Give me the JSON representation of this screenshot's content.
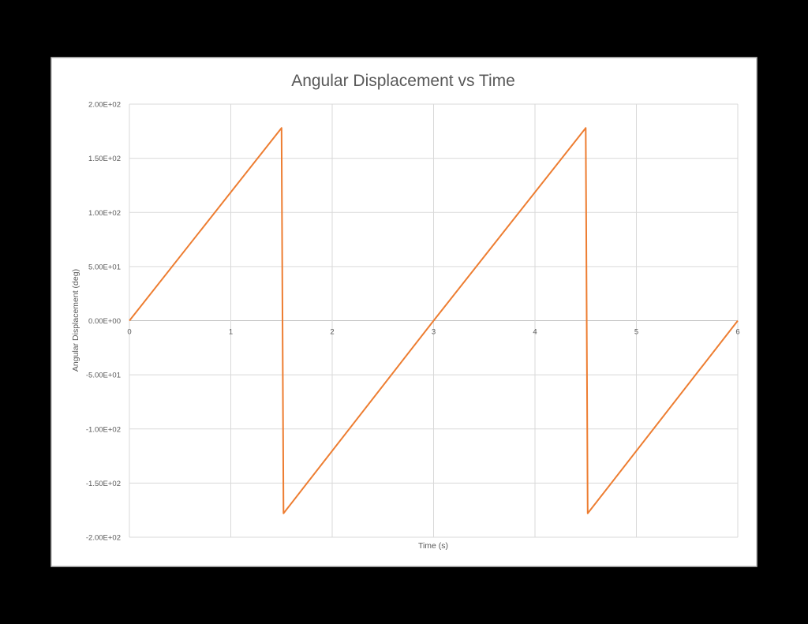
{
  "chart_data": {
    "type": "line",
    "title": "Angular Displacement vs Time",
    "xlabel": "Time (s)",
    "ylabel": "Angular Displacement (deg)",
    "xlim": [
      0,
      6
    ],
    "ylim": [
      -200,
      200
    ],
    "x_ticks": [
      "0",
      "1",
      "2",
      "3",
      "4",
      "5",
      "6"
    ],
    "y_ticks": [
      {
        "value": 200,
        "label": "2.00E+02"
      },
      {
        "value": 150,
        "label": "1.50E+02"
      },
      {
        "value": 100,
        "label": "1.00E+02"
      },
      {
        "value": 50,
        "label": "5.00E+01"
      },
      {
        "value": 0,
        "label": "0.00E+00"
      },
      {
        "value": -50,
        "label": "-5.00E+01"
      },
      {
        "value": -100,
        "label": "-1.00E+02"
      },
      {
        "value": -150,
        "label": "-1.50E+02"
      },
      {
        "value": -200,
        "label": "-2.00E+02"
      }
    ],
    "grid": true,
    "legend": "none",
    "color": "#ED7D31",
    "series": [
      {
        "x": [
          0,
          1.5,
          1.52,
          3.0,
          4.5,
          4.52,
          6.0
        ],
        "y": [
          0,
          178,
          -178,
          0,
          178,
          -178,
          0
        ]
      }
    ]
  }
}
